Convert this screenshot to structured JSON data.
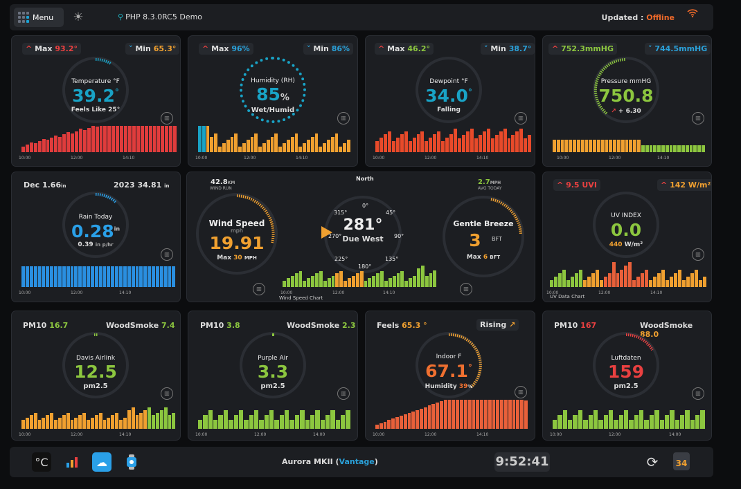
{
  "header": {
    "menu": "Menu",
    "app_version": "PHP 8.3.0RC5 Demo",
    "updated_label": "Updated :",
    "status": "Offline",
    "icons": [
      "menu-grid-icon",
      "sun-icon",
      "location-pin-icon",
      "wifi-icon"
    ]
  },
  "temperature": {
    "max_label": "Max",
    "max": "93.2°",
    "min_label": "Min",
    "min": "65.3°",
    "title": "Temperature °F",
    "value": "39.2",
    "unit": "°",
    "sub": "Feels Like 25°",
    "ticks": [
      "10:00",
      "12:00",
      "14:10"
    ],
    "color": "#e94040"
  },
  "humidity": {
    "max_label": "Max",
    "max": "96%",
    "min_label": "Min",
    "min": "86%",
    "title": "Humidity (RH)",
    "value": "85",
    "unit": "%",
    "sub": "Wet/Humid",
    "ticks": [
      "10:00",
      "12:00",
      "14:10"
    ],
    "color": "#19a3c6"
  },
  "dewpoint": {
    "max_label": "Max",
    "max": "46.2°",
    "min_label": "Min",
    "min": "38.7°",
    "title": "Dewpoint °F",
    "value": "34.0",
    "unit": "°",
    "sub": "Falling",
    "ticks": [
      "10:00",
      "12:00",
      "14:10"
    ],
    "color": "#19a3c6"
  },
  "pressure": {
    "max": "752.3mmHG",
    "min": "744.5mmHG",
    "title": "Pressure mmHG",
    "value": "750.8",
    "sub": "+ 6.30",
    "ticks": [
      "10:00",
      "12:00",
      "14:10"
    ],
    "color": "#8cc63f"
  },
  "rain": {
    "month_label": "Dec",
    "month": "1.66",
    "month_unit": "in",
    "year_label": "2023",
    "year": "34.81",
    "year_unit": "in",
    "title": "Rain Today",
    "value": "0.28",
    "unit": "in",
    "rate": "0.39",
    "rate_unit": "in p/hr",
    "ticks": [
      "10:00",
      "12:00",
      "14:10"
    ],
    "color": "#2aa0e8"
  },
  "wind": {
    "run": "42.8",
    "run_unit": "KM",
    "run_label": "WIND RUN",
    "title": "Wind Speed",
    "unit": "mph",
    "value": "19.91",
    "max_label": "Max",
    "max": "30",
    "max_unit": "MPH",
    "direction": "281°",
    "direction_text": "Due West",
    "compass": [
      "North",
      "0°",
      "45°",
      "90°",
      "135°",
      "180°",
      "225°",
      "270°",
      "315°"
    ],
    "avg": "2.7",
    "avg_unit": "MPH",
    "avg_label": "AVG TODAY",
    "beaufort_text": "Gentle Breeze",
    "beaufort": "3",
    "beaufort_unit": "BFT",
    "bft_max_label": "Max",
    "bft_max": "6",
    "bft_max_unit": "BFT",
    "chart_label": "Wind Speed Chart",
    "ticks": [
      "10:00",
      "12:00",
      "14:10"
    ]
  },
  "uv": {
    "uvi": "9.5 UVI",
    "solar": "142 W/m²",
    "title": "UV INDEX",
    "value": "0.0",
    "solar_now": "440",
    "solar_unit": "W/m²",
    "chart_label": "UV Data Chart",
    "ticks": [
      "10:00",
      "12:00",
      "14:10"
    ]
  },
  "airlink": {
    "pm10_label": "PM10",
    "pm10": "16.7",
    "smoke_label": "WoodSmoke",
    "smoke": "7.4",
    "title": "Davis Airlink",
    "value": "12.5",
    "sub": "pm2.5",
    "ticks": [
      "10:00",
      "12:00",
      "14:10"
    ]
  },
  "purpleair": {
    "pm10_label": "PM10",
    "pm10": "3.8",
    "smoke_label": "WoodSmoke",
    "smoke": "2.3",
    "title": "Purple Air",
    "value": "3.3",
    "sub": "pm2.5",
    "ticks": [
      "10:00",
      "12:00",
      "14:00"
    ]
  },
  "indoor": {
    "feels_label": "Feels",
    "feels": "65.3 °",
    "trend": "Rising",
    "title": "Indoor F",
    "value": "67.1",
    "unit": "°",
    "hum_label": "Humidity",
    "hum": "39",
    "hum_unit": "%",
    "ticks": [
      "10:00",
      "12:00",
      "14:10"
    ]
  },
  "luftdaten": {
    "pm10_label": "PM10",
    "pm10": "167",
    "smoke_label": "WoodSmoke",
    "smoke": "88.0",
    "title": "Luftdaten",
    "value": "159",
    "sub": "pm2.5",
    "ticks": [
      "10:00",
      "12:00",
      "14:00"
    ]
  },
  "footer": {
    "unit": "°C",
    "station": "Aurora MKII",
    "station_model": "Vantage",
    "time": "9:52:41",
    "weather34": "34",
    "icons": [
      "bar-chart-icon",
      "cloud-icon",
      "watch-icon",
      "refresh-icon"
    ]
  }
}
